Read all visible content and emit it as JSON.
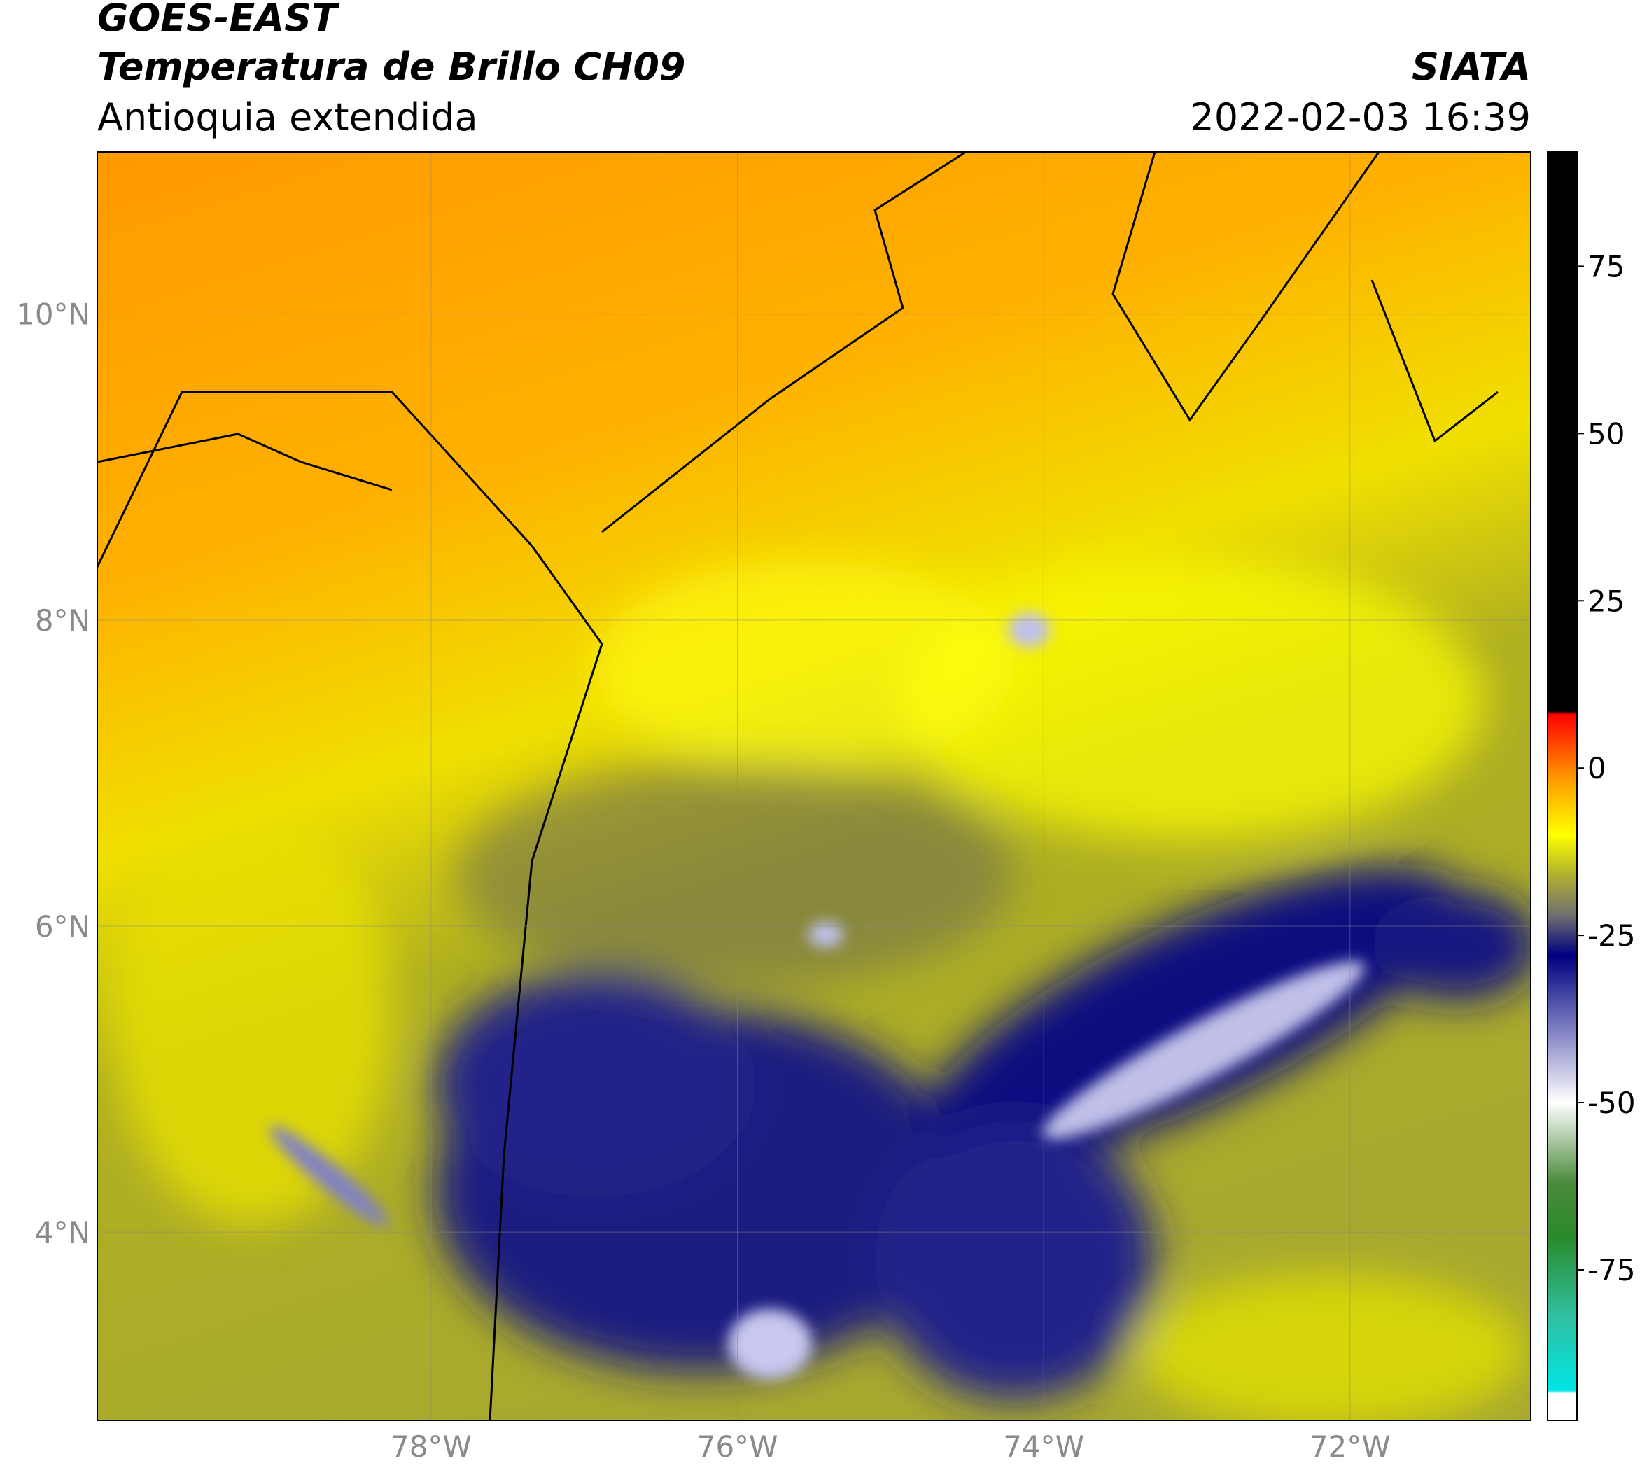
{
  "chart_data": {
    "type": "map",
    "title": "GOES-EAST",
    "subtitle": "Temperatura de Brillo CH09",
    "region": "Antioquia extendida",
    "source": "SIATA",
    "datetime": "2022-02-03 16:39",
    "xlim": [
      -80.18,
      -70.82
    ],
    "ylim": [
      2.77,
      11.06
    ],
    "xticks": [
      {
        "value": -78,
        "label": "78°W"
      },
      {
        "value": -76,
        "label": "76°W"
      },
      {
        "value": -74,
        "label": "74°W"
      },
      {
        "value": -72,
        "label": "72°W"
      }
    ],
    "yticks": [
      {
        "value": 4,
        "label": "4°N"
      },
      {
        "value": 6,
        "label": "6°N"
      },
      {
        "value": 8,
        "label": "8°N"
      },
      {
        "value": 10,
        "label": "10°N"
      }
    ],
    "grid": true,
    "colorbar": {
      "lim": [
        -97.5,
        92.1
      ],
      "ticks": [
        -75,
        -50,
        -25,
        0,
        25,
        50,
        75
      ],
      "stops": [
        {
          "value": -97.5,
          "color": "#ffffff"
        },
        {
          "value": -93.5,
          "color": "#ffffff"
        },
        {
          "value": -93,
          "color": "#00e5e5"
        },
        {
          "value": -82,
          "color": "#30c0a0"
        },
        {
          "value": -70,
          "color": "#2a8a2a"
        },
        {
          "value": -62,
          "color": "#4a8a3a"
        },
        {
          "value": -50,
          "color": "#ffffff"
        },
        {
          "value": -40,
          "color": "#8a8ac8"
        },
        {
          "value": -28,
          "color": "#000080"
        },
        {
          "value": -22,
          "color": "#707070"
        },
        {
          "value": -16,
          "color": "#b0b030"
        },
        {
          "value": -10,
          "color": "#ffff00"
        },
        {
          "value": -2,
          "color": "#ffa000"
        },
        {
          "value": 8,
          "color": "#ff0000"
        },
        {
          "value": 8.5,
          "color": "#000000"
        },
        {
          "value": 92.1,
          "color": "#000000"
        }
      ]
    }
  }
}
